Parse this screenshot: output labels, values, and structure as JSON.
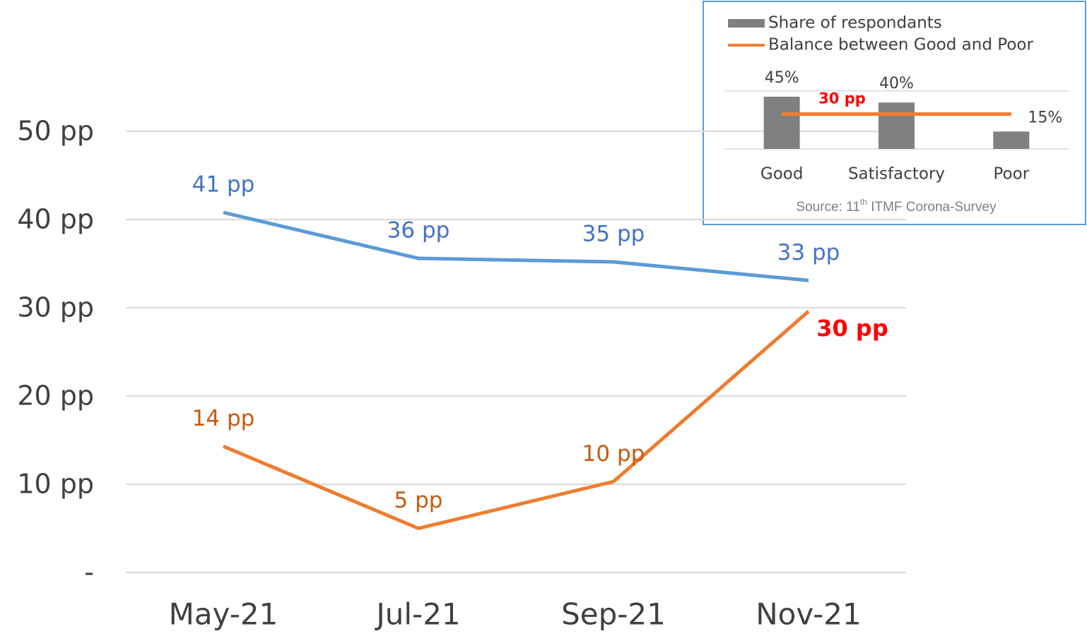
{
  "chart_data": [
    {
      "type": "line",
      "categories": [
        "May-21",
        "Jul-21",
        "Sep-21",
        "Nov-21"
      ],
      "series": [
        {
          "color": "#5b9bd5",
          "label_color": "#4472c4",
          "values": [
            40.8,
            35.6,
            35.2,
            33.1
          ],
          "value_labels": [
            "41 pp",
            "36 pp",
            "35 pp",
            "33 pp"
          ]
        },
        {
          "color": "#ed7d31",
          "label_color": "#c55a11",
          "values": [
            14.3,
            5.0,
            10.3,
            29.6
          ],
          "value_labels": [
            "14 pp",
            "5 pp",
            "10 pp",
            "30 pp"
          ]
        }
      ],
      "highlight_label": {
        "series": 1,
        "index": 3,
        "color": "#ff0000",
        "bold": true
      },
      "ylim": [
        0,
        50
      ],
      "yticks": [
        {
          "value": 0,
          "label": "-"
        },
        {
          "value": 10,
          "label": "10 pp"
        },
        {
          "value": 20,
          "label": "20 pp"
        },
        {
          "value": 30,
          "label": "30 pp"
        },
        {
          "value": 40,
          "label": "40 pp"
        },
        {
          "value": 50,
          "label": "50 pp"
        }
      ],
      "grid": true
    },
    {
      "type": "bar",
      "categories": [
        "Good",
        "Satisfactory",
        "Poor"
      ],
      "series": [
        {
          "name": "Share of respondants",
          "color": "#808080",
          "values": [
            45,
            40,
            15
          ],
          "value_labels": [
            "45%",
            "40%",
            "15%"
          ]
        },
        {
          "name": "Balance between Good and Poor",
          "type": "line",
          "color": "#ed7d31",
          "values": [
            30,
            30,
            30
          ],
          "value_labels": [
            null,
            "30 pp",
            null
          ],
          "label_color": "#ff0000"
        }
      ],
      "ylim": [
        0,
        50
      ],
      "gridlines": [
        0,
        50
      ],
      "source": [
        "Source: 11",
        "th",
        " ITMF Corona-Survey"
      ]
    }
  ]
}
